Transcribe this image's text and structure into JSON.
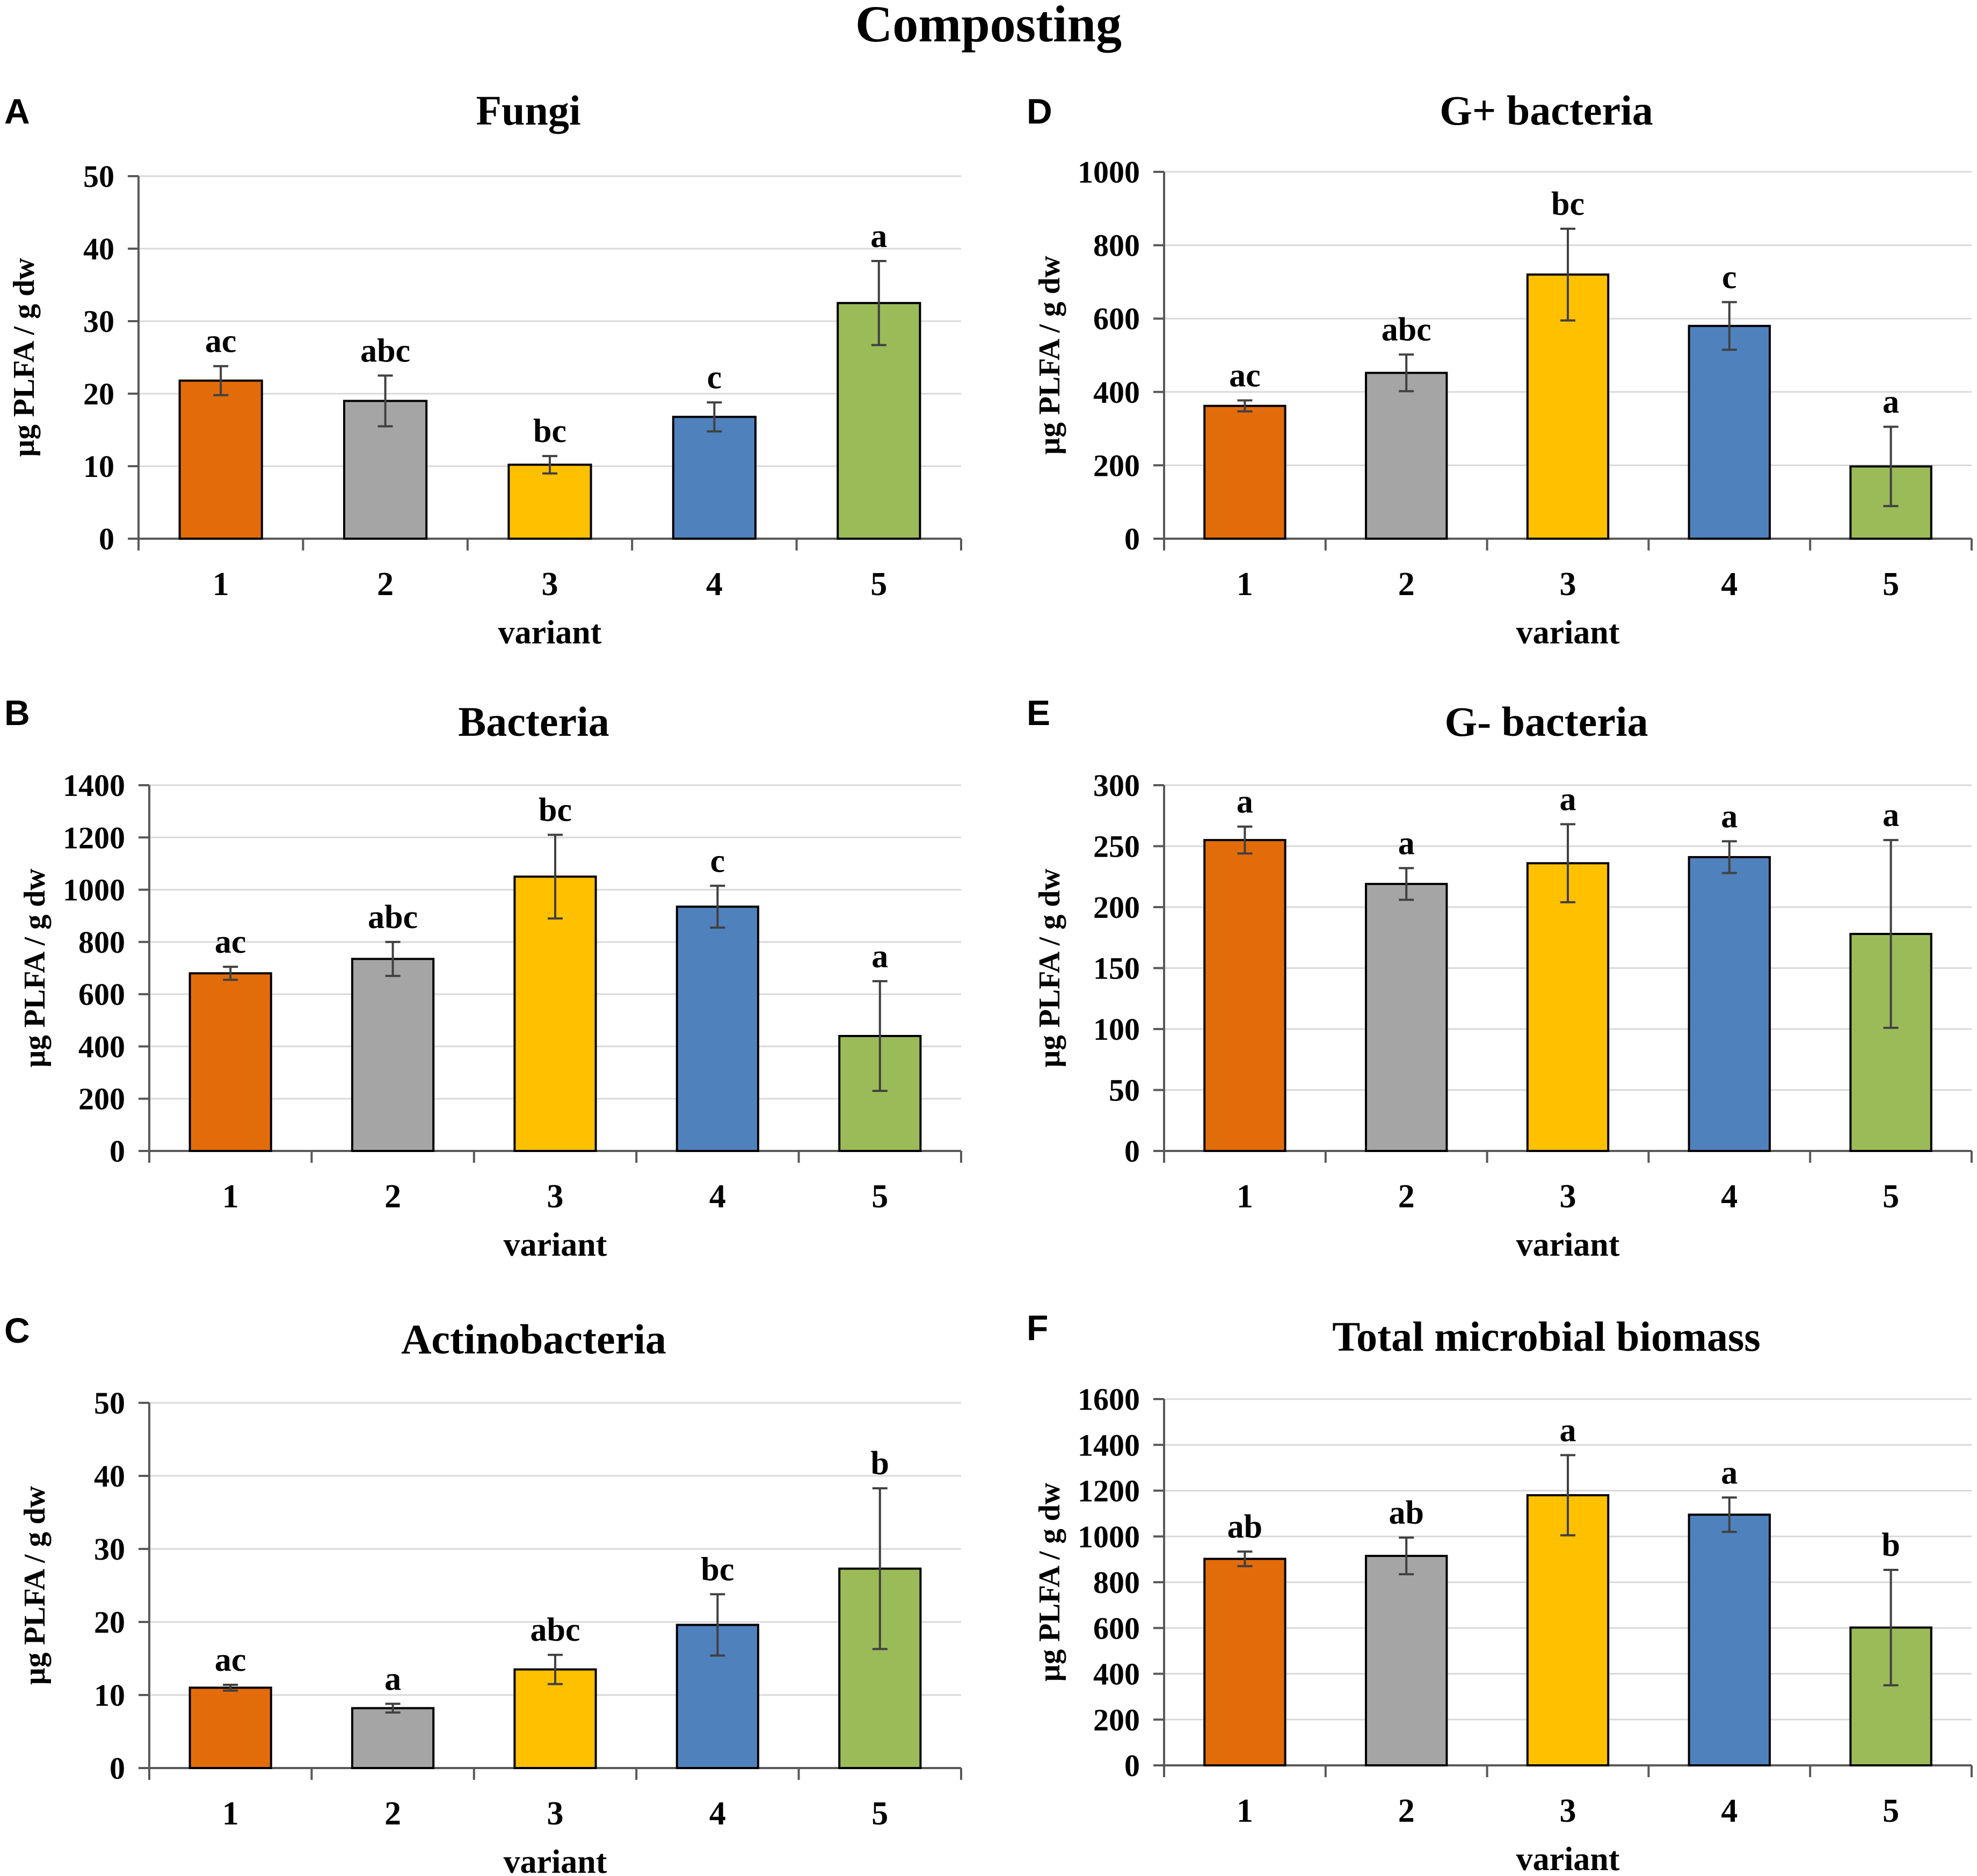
{
  "figure_title": "Composting",
  "colors": {
    "variant_1": "#E36C0A",
    "variant_2": "#A5A5A5",
    "variant_3": "#FFC000",
    "variant_4": "#4F81BD",
    "variant_5": "#9BBB59",
    "gridline": "#D9D9D9",
    "axis": "#595959",
    "error_bar": "#404040"
  },
  "chart_data": [
    {
      "panel": "A",
      "type": "bar",
      "title": "Fungi",
      "xlabel": "variant",
      "ylabel": "µg PLFA / g dw",
      "categories": [
        "1",
        "2",
        "3",
        "4",
        "5"
      ],
      "values": [
        21.8,
        19.0,
        10.2,
        16.8,
        32.5
      ],
      "errors": [
        2.0,
        3.5,
        1.2,
        2.0,
        5.8
      ],
      "letters": [
        "ac",
        "abc",
        "bc",
        "c",
        "a"
      ],
      "ylim": [
        0,
        50
      ],
      "yticks": [
        0,
        10,
        20,
        30,
        40,
        50
      ],
      "grid": true
    },
    {
      "panel": "B",
      "type": "bar",
      "title": "Bacteria",
      "xlabel": "variant",
      "ylabel": "µg PLFA / g dw",
      "categories": [
        "1",
        "2",
        "3",
        "4",
        "5"
      ],
      "values": [
        680,
        735,
        1050,
        935,
        440
      ],
      "errors": [
        25,
        65,
        160,
        80,
        210
      ],
      "letters": [
        "ac",
        "abc",
        "bc",
        "c",
        "a"
      ],
      "ylim": [
        0,
        1400
      ],
      "yticks": [
        0,
        200,
        400,
        600,
        800,
        1000,
        1200,
        1400
      ],
      "grid": true
    },
    {
      "panel": "C",
      "type": "bar",
      "title": "Actinobacteria",
      "xlabel": "variant",
      "ylabel": "µg PLFA / g dw",
      "categories": [
        "1",
        "2",
        "3",
        "4",
        "5"
      ],
      "values": [
        11.0,
        8.2,
        13.5,
        19.6,
        27.3
      ],
      "errors": [
        0.4,
        0.6,
        2.0,
        4.2,
        11.0
      ],
      "letters": [
        "ac",
        "a",
        "abc",
        "bc",
        "b"
      ],
      "ylim": [
        0,
        50
      ],
      "yticks": [
        0,
        10,
        20,
        30,
        40,
        50
      ],
      "grid": true
    },
    {
      "panel": "D",
      "type": "bar",
      "title": "G+ bacteria",
      "xlabel": "variant",
      "ylabel": "µg PLFA / g dw",
      "categories": [
        "1",
        "2",
        "3",
        "4",
        "5"
      ],
      "values": [
        362,
        452,
        720,
        580,
        197
      ],
      "errors": [
        15,
        50,
        125,
        65,
        108
      ],
      "letters": [
        "ac",
        "abc",
        "bc",
        "c",
        "a"
      ],
      "ylim": [
        0,
        1000
      ],
      "yticks": [
        0,
        200,
        400,
        600,
        800,
        1000
      ],
      "grid": true
    },
    {
      "panel": "E",
      "type": "bar",
      "title": "G- bacteria",
      "xlabel": "variant",
      "ylabel": "µg PLFA / g dw",
      "categories": [
        "1",
        "2",
        "3",
        "4",
        "5"
      ],
      "values": [
        255,
        219,
        236,
        241,
        178
      ],
      "errors": [
        11,
        13,
        32,
        13,
        77
      ],
      "letters": [
        "a",
        "a",
        "a",
        "a",
        "a"
      ],
      "ylim": [
        0,
        300
      ],
      "yticks": [
        0,
        50,
        100,
        150,
        200,
        250,
        300
      ],
      "grid": true
    },
    {
      "panel": "F",
      "type": "bar",
      "title": "Total microbial biomass",
      "xlabel": "variant",
      "ylabel": "µg PLFA / g dw",
      "categories": [
        "1",
        "2",
        "3",
        "4",
        "5"
      ],
      "values": [
        902,
        915,
        1180,
        1095,
        602
      ],
      "errors": [
        32,
        80,
        175,
        75,
        252
      ],
      "letters": [
        "ab",
        "ab",
        "a",
        "a",
        "b"
      ],
      "ylim": [
        0,
        1600
      ],
      "yticks": [
        0,
        200,
        400,
        600,
        800,
        1000,
        1200,
        1400,
        1600
      ],
      "grid": true
    }
  ]
}
